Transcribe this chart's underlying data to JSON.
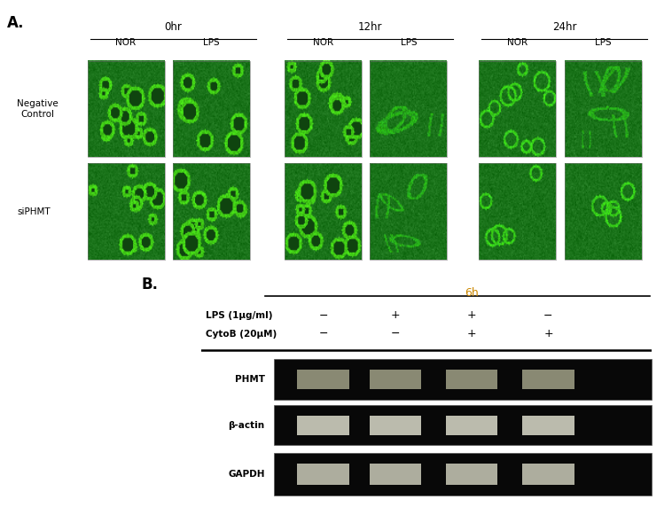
{
  "panel_A_label": "A.",
  "panel_B_label": "B.",
  "time_points": [
    "0hr",
    "12hr",
    "24hr"
  ],
  "col_labels": [
    "NOR",
    "LPS"
  ],
  "row_labels": [
    "Negative\nControl",
    "siPHMT"
  ],
  "section_6h": "6h",
  "lps_label": "LPS (1μg/ml)",
  "cytob_label": "CytoB (20μM)",
  "lps_signs": [
    "−",
    "+",
    "+",
    "−"
  ],
  "cytob_signs": [
    "−",
    "−",
    "+",
    "+"
  ],
  "gene_labels": [
    "PHMT",
    "β-actin",
    "GAPDH"
  ],
  "white": "#ffffff",
  "black": "#000000",
  "cell_ring_color": [
    0.6,
    1.0,
    0.4
  ],
  "bg_green_dark": [
    0.1,
    0.45,
    0.1
  ],
  "bg_green_mid": [
    0.15,
    0.52,
    0.15
  ],
  "bg_green_light": [
    0.2,
    0.6,
    0.15
  ],
  "band_colors": [
    "#909080",
    "#c8c8b8",
    "#b8b8a8"
  ],
  "gel_bg": "#080808"
}
